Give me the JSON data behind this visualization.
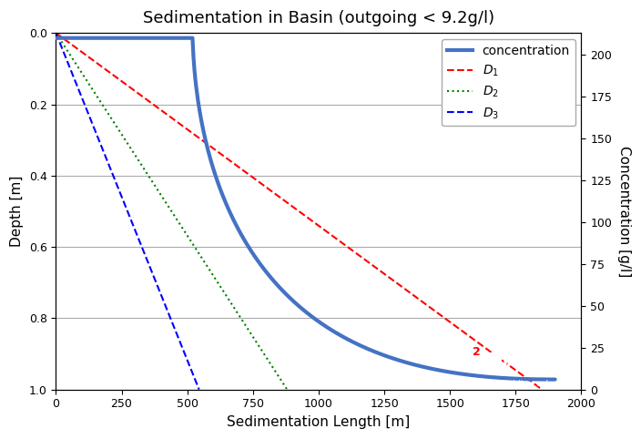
{
  "title": "Sedimentation in Basin (outgoing < 9.2g/l)",
  "xlabel": "Sedimentation Length [m]",
  "ylabel_left": "Depth [m]",
  "ylabel_right": "Concentration [g/l]",
  "xlim": [
    0,
    2000
  ],
  "ylim_depth": [
    0,
    1.0
  ],
  "ylim_conc": [
    0,
    213
  ],
  "depth_yticks": [
    0.0,
    0.2,
    0.4,
    0.6,
    0.8,
    1.0
  ],
  "conc_yticks": [
    0,
    25,
    50,
    75,
    100,
    125,
    150,
    175,
    200
  ],
  "xticks": [
    0,
    250,
    500,
    750,
    1000,
    1250,
    1500,
    1750,
    2000
  ],
  "concentration_color": "#4472C4",
  "d1_color": "#FF0000",
  "d2_color": "#008000",
  "d3_color": "#0000FF",
  "background_color": "#FFFFFF",
  "logo_bg_color": "#1874CD",
  "logo_text_color": "#FFFFFF",
  "logo_accent_color": "#FF0000",
  "conc_flat_end": 520,
  "conc_flat_value": 210,
  "conc_decay_end": 1900,
  "conc_final": 6,
  "d1_x_end": 1850,
  "d2_x_end": 880,
  "d3_x_end": 545,
  "figsize": [
    7.04,
    4.82
  ],
  "dpi": 100
}
